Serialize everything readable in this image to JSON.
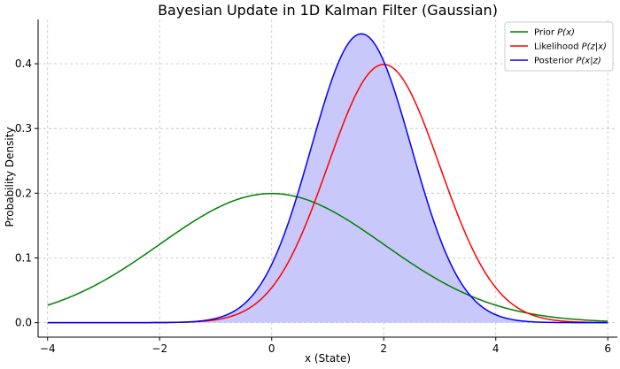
{
  "chart_data": {
    "type": "line",
    "title": "Bayesian Update in 1D Kalman Filter (Gaussian)",
    "xlabel": "x (State)",
    "ylabel": "Probability Density",
    "xlim": [
      -4.17,
      6.17
    ],
    "ylim": [
      -0.0224,
      0.4684
    ],
    "xticks": [
      -4,
      -2,
      0,
      2,
      4,
      6
    ],
    "xtick_labels": [
      "−4",
      "−2",
      "0",
      "2",
      "4",
      "6"
    ],
    "yticks": [
      0.0,
      0.1,
      0.2,
      0.3,
      0.4
    ],
    "ytick_labels": [
      "0.0",
      "0.1",
      "0.2",
      "0.3",
      "0.4"
    ],
    "grid": true,
    "legend_position": "top-right",
    "series": [
      {
        "name": "Prior P(x)",
        "legend_main": "Prior ",
        "legend_math": "P(x)",
        "color": "#008000",
        "mean": 0.0,
        "std": 2.0,
        "x_range": [
          -4,
          6
        ]
      },
      {
        "name": "Likelihood P(z|x)",
        "legend_main": "Likelihood ",
        "legend_math": "P(z|x)",
        "color": "#ff0000",
        "mean": 2.0,
        "std": 1.0,
        "x_range": [
          -4,
          6
        ]
      },
      {
        "name": "Posterior P(x|z)",
        "legend_main": "Posterior ",
        "legend_math": "P(x|z)",
        "color": "#0000ff",
        "mean": 1.6,
        "std": 0.894,
        "x_range": [
          -4,
          6
        ],
        "fill": "#c8c8fa"
      }
    ]
  }
}
